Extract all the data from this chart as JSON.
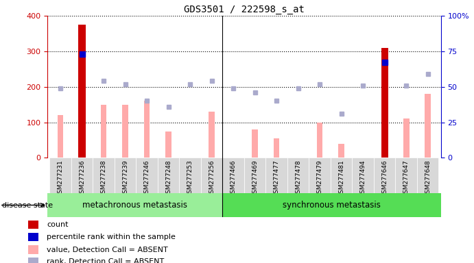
{
  "title": "GDS3501 / 222598_s_at",
  "samples": [
    "GSM277231",
    "GSM277236",
    "GSM277238",
    "GSM277239",
    "GSM277246",
    "GSM277248",
    "GSM277253",
    "GSM277256",
    "GSM277466",
    "GSM277469",
    "GSM277477",
    "GSM277478",
    "GSM277479",
    "GSM277481",
    "GSM277494",
    "GSM277646",
    "GSM277647",
    "GSM277648"
  ],
  "group1_count": 8,
  "group2_count": 10,
  "group1_label": "metachronous metastasis",
  "group2_label": "synchronous metastasis",
  "disease_state_label": "disease state",
  "count_values": [
    null,
    375,
    null,
    null,
    null,
    null,
    null,
    null,
    null,
    null,
    null,
    null,
    null,
    null,
    null,
    310,
    null,
    null
  ],
  "percentile_values": [
    null,
    73,
    null,
    null,
    null,
    null,
    null,
    null,
    null,
    null,
    null,
    null,
    null,
    null,
    null,
    67,
    null,
    null
  ],
  "absent_value": [
    120,
    null,
    150,
    150,
    160,
    75,
    null,
    130,
    null,
    80,
    55,
    null,
    100,
    40,
    null,
    null,
    110,
    180
  ],
  "absent_rank": [
    49,
    null,
    54,
    52,
    40,
    36,
    52,
    54,
    49,
    46,
    40,
    49,
    52,
    31,
    51,
    null,
    51,
    59
  ],
  "ylim_left": [
    0,
    400
  ],
  "ylim_right": [
    0,
    100
  ],
  "yticks_left": [
    0,
    100,
    200,
    300,
    400
  ],
  "yticks_right": [
    0,
    25,
    50,
    75,
    100
  ],
  "color_count": "#cc0000",
  "color_percentile": "#0000cc",
  "color_absent_value": "#ffaaaa",
  "color_absent_rank": "#aaaacc",
  "bg_plot": "#ffffff",
  "bg_ticklabels": "#d8d8d8",
  "bg_group1": "#99ee99",
  "bg_group2": "#55dd55",
  "legend_items": [
    {
      "color": "#cc0000",
      "marker": "s",
      "label": "count"
    },
    {
      "color": "#0000cc",
      "marker": "s",
      "label": "percentile rank within the sample"
    },
    {
      "color": "#ffaaaa",
      "marker": "s",
      "label": "value, Detection Call = ABSENT"
    },
    {
      "color": "#aaaacc",
      "marker": "s",
      "label": "rank, Detection Call = ABSENT"
    }
  ]
}
